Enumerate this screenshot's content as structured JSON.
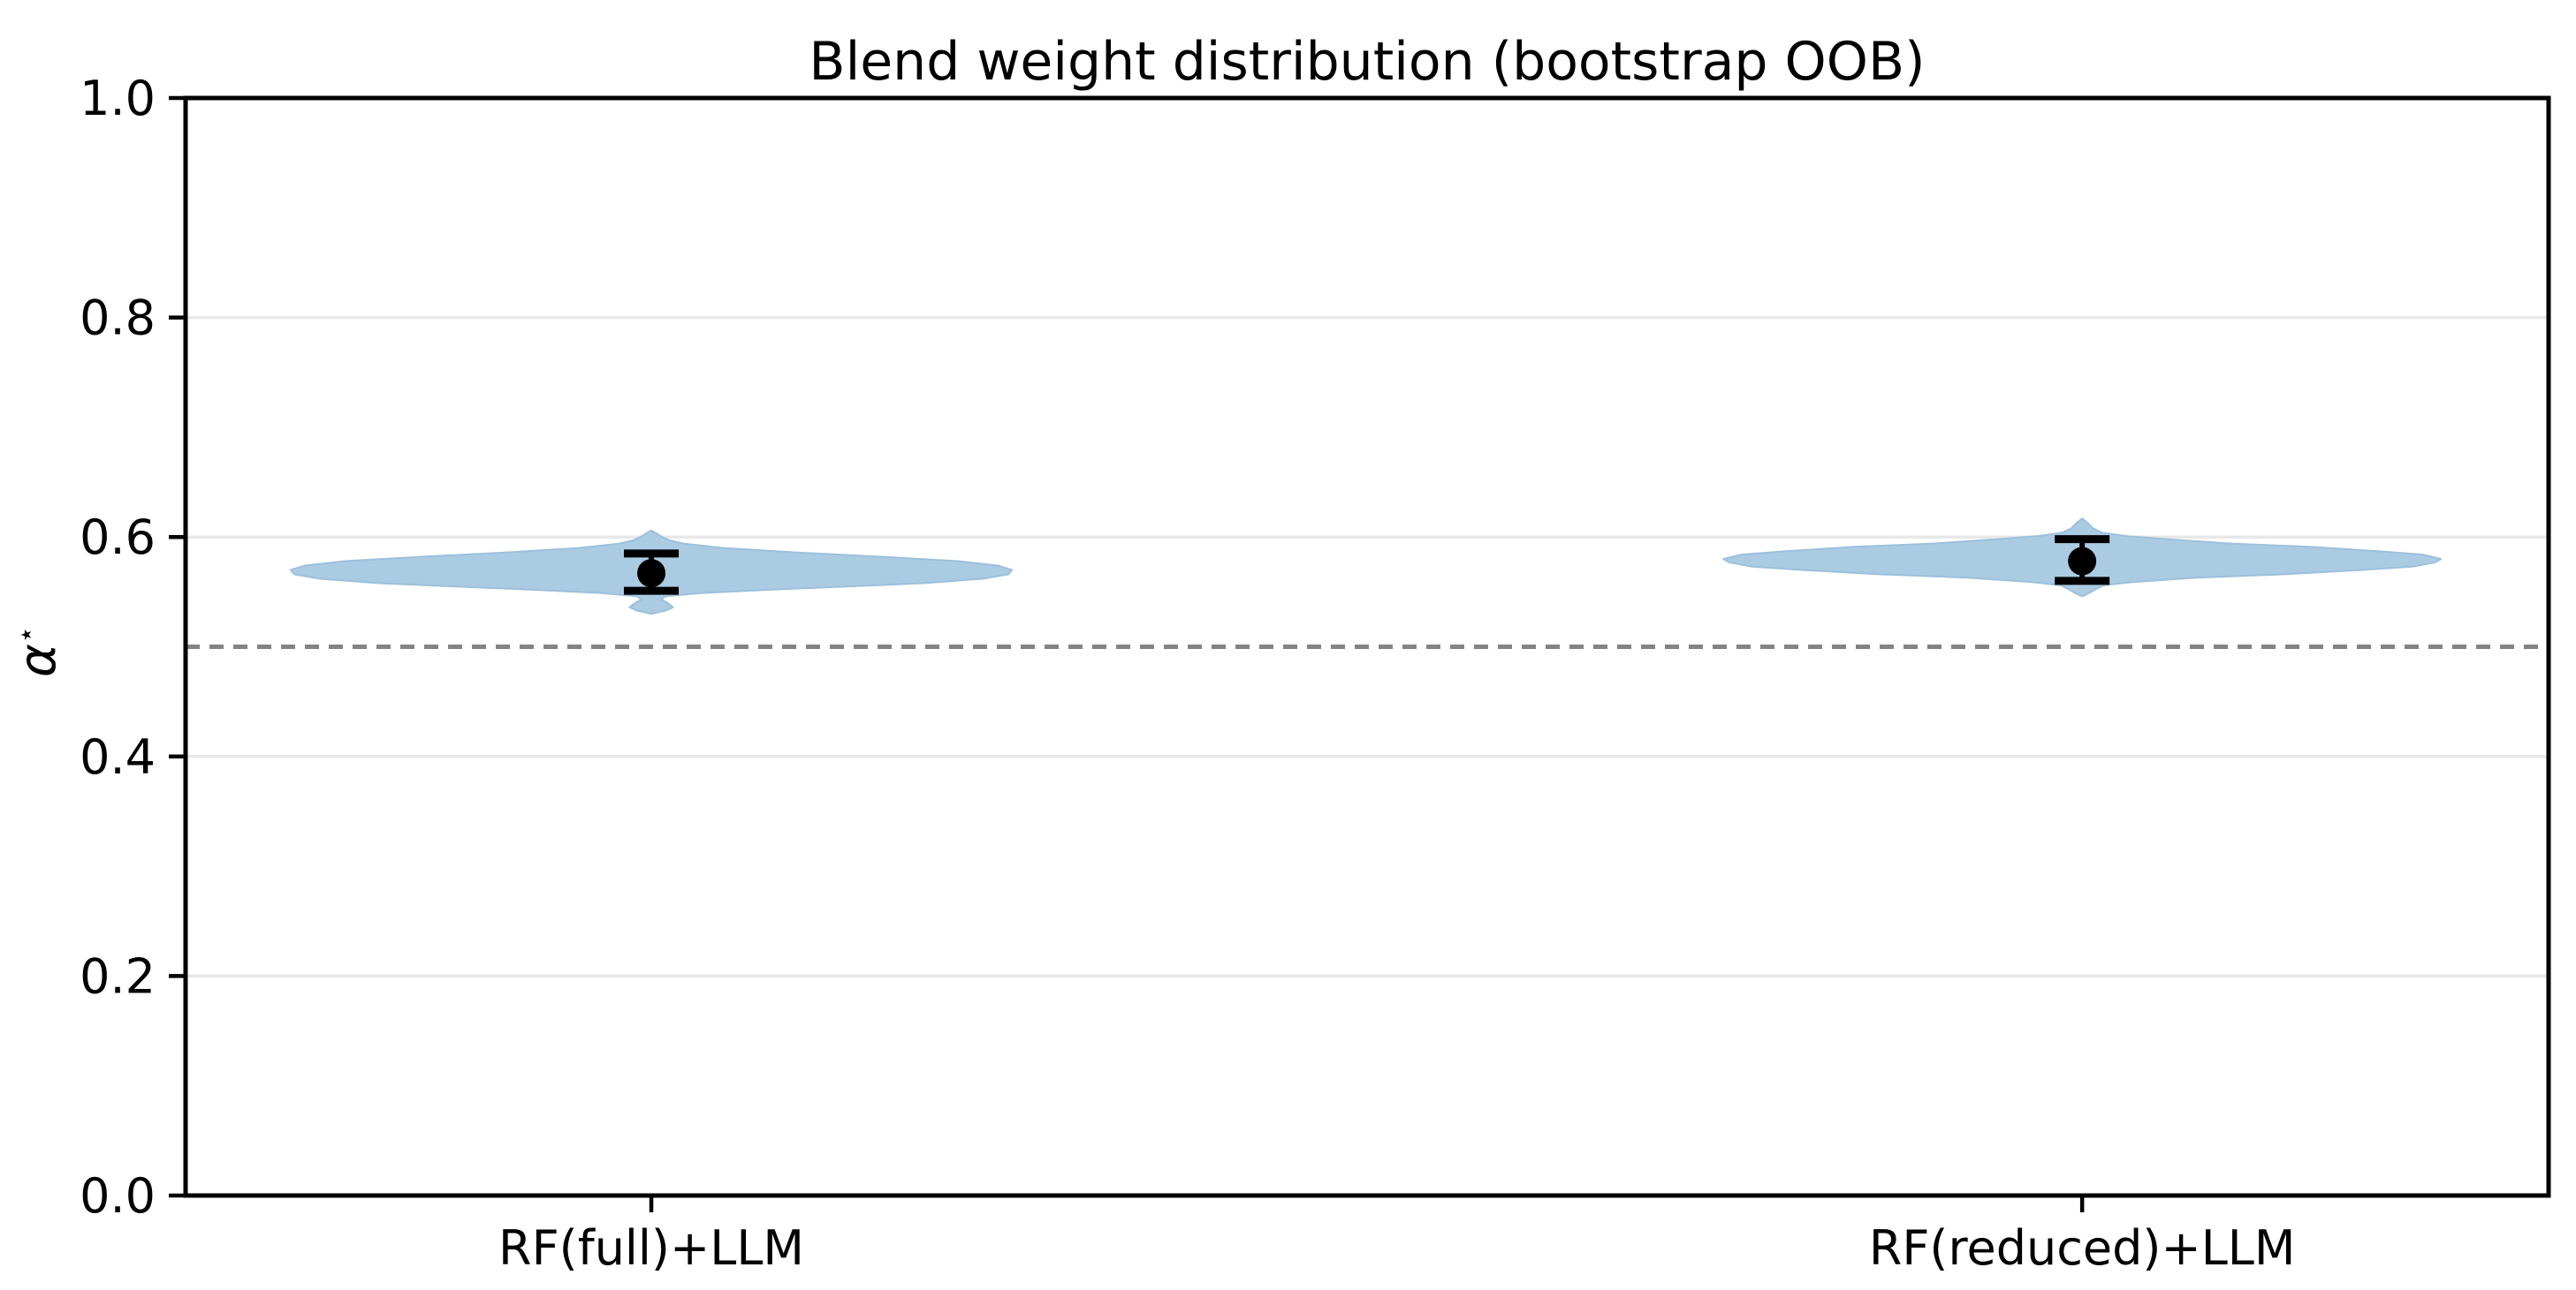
{
  "chart_data": {
    "type": "violin",
    "title": "Blend weight distribution (bootstrap OOB)",
    "ylabel_main": "α",
    "ylabel_sup": "⋆",
    "ylabel": "α⋆",
    "categories": [
      "RF(full)+LLM",
      "RF(reduced)+LLM"
    ],
    "ylim": [
      0.0,
      1.0
    ],
    "yticks": [
      0.0,
      0.2,
      0.4,
      0.6,
      0.8,
      1.0
    ],
    "ytick_labels": [
      "0.0",
      "0.2",
      "0.4",
      "0.6",
      "0.8",
      "1.0"
    ],
    "grid": "horizontal",
    "legend": null,
    "reference_line": {
      "value": 0.5,
      "style": "dashed",
      "color": "#838383"
    },
    "styles": {
      "violin_fill": "#abcbe3",
      "violin_edge": "#9cc0dc",
      "grid_color": "#e8e8e8",
      "marker_color": "#000000",
      "axis_color": "#000000"
    },
    "series": [
      {
        "label": "RF(full)+LLM",
        "mean": 0.567,
        "ci_low": 0.551,
        "ci_high": 0.585,
        "min": 0.53,
        "max": 0.606,
        "mode": 0.57,
        "x_frac": 0.1971,
        "half_width_frac": 0.1526,
        "profile": [
          [
            0.53,
            0.0
          ],
          [
            0.533,
            0.04
          ],
          [
            0.536,
            0.06
          ],
          [
            0.54,
            0.045
          ],
          [
            0.543,
            0.027
          ],
          [
            0.546,
            0.04
          ],
          [
            0.549,
            0.14
          ],
          [
            0.552,
            0.33
          ],
          [
            0.555,
            0.55
          ],
          [
            0.558,
            0.76
          ],
          [
            0.562,
            0.92
          ],
          [
            0.566,
            0.99
          ],
          [
            0.57,
            1.0
          ],
          [
            0.574,
            0.96
          ],
          [
            0.578,
            0.85
          ],
          [
            0.582,
            0.64
          ],
          [
            0.586,
            0.4
          ],
          [
            0.59,
            0.2
          ],
          [
            0.594,
            0.09
          ],
          [
            0.597,
            0.05
          ],
          [
            0.6,
            0.03
          ],
          [
            0.603,
            0.016
          ],
          [
            0.606,
            0.0
          ]
        ]
      },
      {
        "label": "RF(reduced)+LLM",
        "mean": 0.578,
        "ci_low": 0.56,
        "ci_high": 0.598,
        "min": 0.546,
        "max": 0.617,
        "mode": 0.58,
        "x_frac": 0.8026,
        "half_width_frac": 0.1518,
        "profile": [
          [
            0.546,
            0.0
          ],
          [
            0.549,
            0.02
          ],
          [
            0.552,
            0.035
          ],
          [
            0.556,
            0.06
          ],
          [
            0.559,
            0.14
          ],
          [
            0.563,
            0.32
          ],
          [
            0.566,
            0.56
          ],
          [
            0.57,
            0.78
          ],
          [
            0.573,
            0.92
          ],
          [
            0.577,
            0.985
          ],
          [
            0.58,
            1.0
          ],
          [
            0.584,
            0.95
          ],
          [
            0.587,
            0.83
          ],
          [
            0.591,
            0.64
          ],
          [
            0.594,
            0.42
          ],
          [
            0.598,
            0.24
          ],
          [
            0.601,
            0.12
          ],
          [
            0.604,
            0.055
          ],
          [
            0.608,
            0.03
          ],
          [
            0.612,
            0.018
          ],
          [
            0.617,
            0.0
          ]
        ]
      }
    ]
  }
}
